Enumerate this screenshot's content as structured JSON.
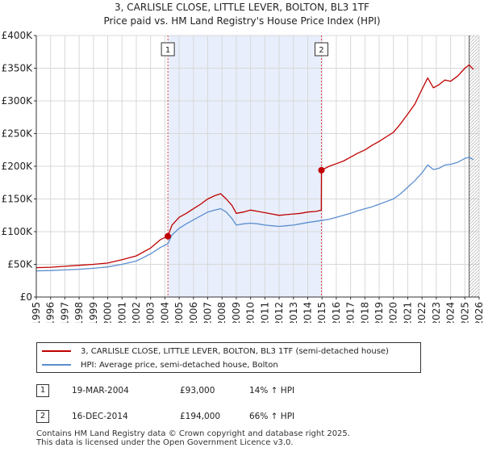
{
  "title_line1": "3, CARLISLE CLOSE, LITTLE LEVER, BOLTON, BL3 1TF",
  "title_line2": "Price paid vs. HM Land Registry's House Price Index (HPI)",
  "colors": {
    "property": "#c00000",
    "hpi": "#5b8ed0",
    "shade": "#e8eefb",
    "marker_line": "#e04040",
    "grid": "#d8d8d8"
  },
  "chart_data": {
    "type": "line",
    "x_range": [
      1995,
      2026
    ],
    "ylim": [
      0,
      400000
    ],
    "y_ticks": [
      {
        "value": 0,
        "label": "£0"
      },
      {
        "value": 50000,
        "label": "£50K"
      },
      {
        "value": 100000,
        "label": "£100K"
      },
      {
        "value": 150000,
        "label": "£150K"
      },
      {
        "value": 200000,
        "label": "£200K"
      },
      {
        "value": 250000,
        "label": "£250K"
      },
      {
        "value": 300000,
        "label": "£300K"
      },
      {
        "value": 350000,
        "label": "£350K"
      },
      {
        "value": 400000,
        "label": "£400K"
      }
    ],
    "x_ticks": [
      "1995",
      "1996",
      "1997",
      "1998",
      "1999",
      "2000",
      "2001",
      "2002",
      "2003",
      "2004",
      "2005",
      "2006",
      "2007",
      "2008",
      "2009",
      "2010",
      "2011",
      "2012",
      "2013",
      "2014",
      "2015",
      "2016",
      "2017",
      "2018",
      "2019",
      "2020",
      "2021",
      "2022",
      "2023",
      "2024",
      "2025",
      "2026"
    ],
    "shaded_region": [
      2004.21,
      2014.96
    ],
    "hatched_from": 2025.3,
    "series": [
      {
        "name": "3, CARLISLE CLOSE, LITTLE LEVER, BOLTON, BL3 1TF (semi-detached house)",
        "color": "#c00000",
        "points": [
          [
            1995,
            45000
          ],
          [
            1996,
            45500
          ],
          [
            1997,
            47000
          ],
          [
            1998,
            48500
          ],
          [
            1999,
            50000
          ],
          [
            2000,
            52000
          ],
          [
            2001,
            57000
          ],
          [
            2002,
            63000
          ],
          [
            2003,
            75000
          ],
          [
            2003.7,
            88000
          ],
          [
            2004.21,
            93000
          ],
          [
            2004.5,
            110000
          ],
          [
            2005,
            122000
          ],
          [
            2005.5,
            128000
          ],
          [
            2006,
            135000
          ],
          [
            2006.5,
            142000
          ],
          [
            2007,
            150000
          ],
          [
            2007.5,
            155000
          ],
          [
            2007.9,
            158000
          ],
          [
            2008.3,
            150000
          ],
          [
            2008.7,
            140000
          ],
          [
            2009,
            128000
          ],
          [
            2009.5,
            130000
          ],
          [
            2010,
            133000
          ],
          [
            2010.5,
            131000
          ],
          [
            2011,
            129000
          ],
          [
            2011.5,
            127000
          ],
          [
            2012,
            125000
          ],
          [
            2012.5,
            126000
          ],
          [
            2013,
            127000
          ],
          [
            2013.5,
            128000
          ],
          [
            2014,
            130000
          ],
          [
            2014.6,
            131000
          ],
          [
            2014.95,
            133000
          ],
          [
            2014.96,
            194000
          ],
          [
            2015.5,
            200000
          ],
          [
            2016,
            204000
          ],
          [
            2016.5,
            208000
          ],
          [
            2017,
            214000
          ],
          [
            2017.5,
            220000
          ],
          [
            2018,
            225000
          ],
          [
            2018.5,
            232000
          ],
          [
            2019,
            238000
          ],
          [
            2019.5,
            245000
          ],
          [
            2020,
            252000
          ],
          [
            2020.5,
            265000
          ],
          [
            2021,
            280000
          ],
          [
            2021.5,
            295000
          ],
          [
            2022,
            318000
          ],
          [
            2022.4,
            335000
          ],
          [
            2022.8,
            320000
          ],
          [
            2023.2,
            325000
          ],
          [
            2023.6,
            332000
          ],
          [
            2024,
            330000
          ],
          [
            2024.5,
            338000
          ],
          [
            2025,
            350000
          ],
          [
            2025.3,
            355000
          ],
          [
            2025.6,
            348000
          ]
        ]
      },
      {
        "name": "HPI: Average price, semi-detached house, Bolton",
        "color": "#5b8ed0",
        "points": [
          [
            1995,
            40000
          ],
          [
            1996,
            40500
          ],
          [
            1997,
            41500
          ],
          [
            1998,
            42500
          ],
          [
            1999,
            44000
          ],
          [
            2000,
            46000
          ],
          [
            2001,
            50000
          ],
          [
            2002,
            55000
          ],
          [
            2003,
            66000
          ],
          [
            2003.7,
            76000
          ],
          [
            2004.21,
            81500
          ],
          [
            2004.5,
            95000
          ],
          [
            2005,
            105000
          ],
          [
            2005.5,
            112000
          ],
          [
            2006,
            118000
          ],
          [
            2006.5,
            124000
          ],
          [
            2007,
            130000
          ],
          [
            2007.5,
            133000
          ],
          [
            2007.9,
            135000
          ],
          [
            2008.3,
            130000
          ],
          [
            2008.7,
            120000
          ],
          [
            2009,
            110000
          ],
          [
            2009.5,
            112000
          ],
          [
            2010,
            113000
          ],
          [
            2010.5,
            112000
          ],
          [
            2011,
            110000
          ],
          [
            2011.5,
            109000
          ],
          [
            2012,
            108000
          ],
          [
            2012.5,
            109000
          ],
          [
            2013,
            110000
          ],
          [
            2013.5,
            112000
          ],
          [
            2014,
            114000
          ],
          [
            2014.96,
            117000
          ],
          [
            2015.5,
            119000
          ],
          [
            2016,
            122000
          ],
          [
            2016.5,
            125000
          ],
          [
            2017,
            128000
          ],
          [
            2017.5,
            132000
          ],
          [
            2018,
            135000
          ],
          [
            2018.5,
            138000
          ],
          [
            2019,
            142000
          ],
          [
            2019.5,
            146000
          ],
          [
            2020,
            150000
          ],
          [
            2020.5,
            158000
          ],
          [
            2021,
            168000
          ],
          [
            2021.5,
            178000
          ],
          [
            2022,
            190000
          ],
          [
            2022.4,
            202000
          ],
          [
            2022.8,
            195000
          ],
          [
            2023.2,
            197000
          ],
          [
            2023.6,
            202000
          ],
          [
            2024,
            203000
          ],
          [
            2024.5,
            206000
          ],
          [
            2025,
            212000
          ],
          [
            2025.3,
            214000
          ],
          [
            2025.6,
            210000
          ]
        ]
      }
    ],
    "sales": [
      {
        "id": "1",
        "x": 2004.21,
        "price": 93000
      },
      {
        "id": "2",
        "x": 2014.96,
        "price": 194000
      }
    ]
  },
  "legend": {
    "property_label": "3, CARLISLE CLOSE, LITTLE LEVER, BOLTON, BL3 1TF (semi-detached house)",
    "hpi_label": "HPI: Average price, semi-detached house, Bolton"
  },
  "sales_table": [
    {
      "num": "1",
      "date": "19-MAR-2004",
      "price": "£93,000",
      "hpi": "14% ↑ HPI"
    },
    {
      "num": "2",
      "date": "16-DEC-2014",
      "price": "£194,000",
      "hpi": "66% ↑ HPI"
    }
  ],
  "footer_line1": "Contains HM Land Registry data © Crown copyright and database right 2025.",
  "footer_line2": "This data is licensed under the Open Government Licence v3.0."
}
